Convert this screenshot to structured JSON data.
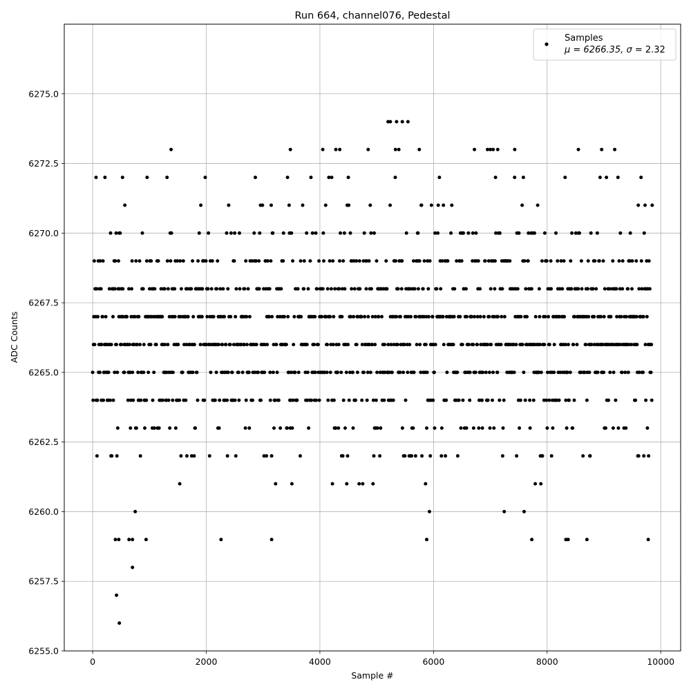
{
  "chart_data": {
    "type": "scatter",
    "title": "Run 664, channel076, Pedestal",
    "xlabel": "Sample #",
    "ylabel": "ADC Counts",
    "xlim": [
      -500,
      10350
    ],
    "ylim": [
      6255.0,
      6277.5
    ],
    "grid": true,
    "x_ticks": [
      "0",
      "2000",
      "4000",
      "6000",
      "8000",
      "10000"
    ],
    "x_tick_values": [
      0,
      2000,
      4000,
      6000,
      8000,
      10000
    ],
    "y_ticks": [
      "6255.0",
      "6257.5",
      "6260.0",
      "6262.5",
      "6265.0",
      "6267.5",
      "6270.0",
      "6272.5",
      "6275.0"
    ],
    "y_tick_values": [
      6255.0,
      6257.5,
      6260.0,
      6262.5,
      6265.0,
      6267.5,
      6270.0,
      6272.5,
      6275.0
    ],
    "legend": {
      "placement": "upper right",
      "series_name": "Samples",
      "stats_prefix": "μ = 6266.35, ",
      "stats_sigma_symbol": "σ",
      "stats_suffix": " = 2.32"
    },
    "marker_color": "#000000",
    "n_samples": 9850,
    "mean": 6266.35,
    "sigma": 2.32,
    "series": [
      {
        "name": "Samples",
        "outliers": [
          [
            420,
            6257
          ],
          [
            470,
            6256
          ],
          [
            700,
            6258
          ],
          [
            60,
            6272
          ],
          [
            1380,
            6273
          ],
          [
            3480,
            6273
          ],
          [
            4050,
            6273
          ],
          [
            4280,
            6273
          ],
          [
            4350,
            6273
          ],
          [
            4850,
            6273
          ],
          [
            5200,
            6274
          ],
          [
            5240,
            6274
          ],
          [
            5350,
            6274
          ],
          [
            5450,
            6274
          ],
          [
            5550,
            6274
          ],
          [
            5330,
            6273
          ],
          [
            5390,
            6273
          ],
          [
            5750,
            6273
          ],
          [
            6720,
            6273
          ],
          [
            6950,
            6273
          ],
          [
            7000,
            6273
          ],
          [
            7050,
            6273
          ],
          [
            7130,
            6273
          ],
          [
            7430,
            6273
          ],
          [
            8550,
            6273
          ],
          [
            8960,
            6273
          ],
          [
            9190,
            6273
          ],
          [
            2260,
            6259
          ],
          [
            3150,
            6259
          ],
          [
            5880,
            6259
          ],
          [
            7730,
            6259
          ],
          [
            8330,
            6259
          ],
          [
            8370,
            6259
          ],
          [
            8700,
            6259
          ],
          [
            9780,
            6259
          ],
          [
            400,
            6259
          ],
          [
            460,
            6259
          ],
          [
            640,
            6259
          ],
          [
            700,
            6259
          ],
          [
            940,
            6259
          ]
        ]
      }
    ]
  }
}
